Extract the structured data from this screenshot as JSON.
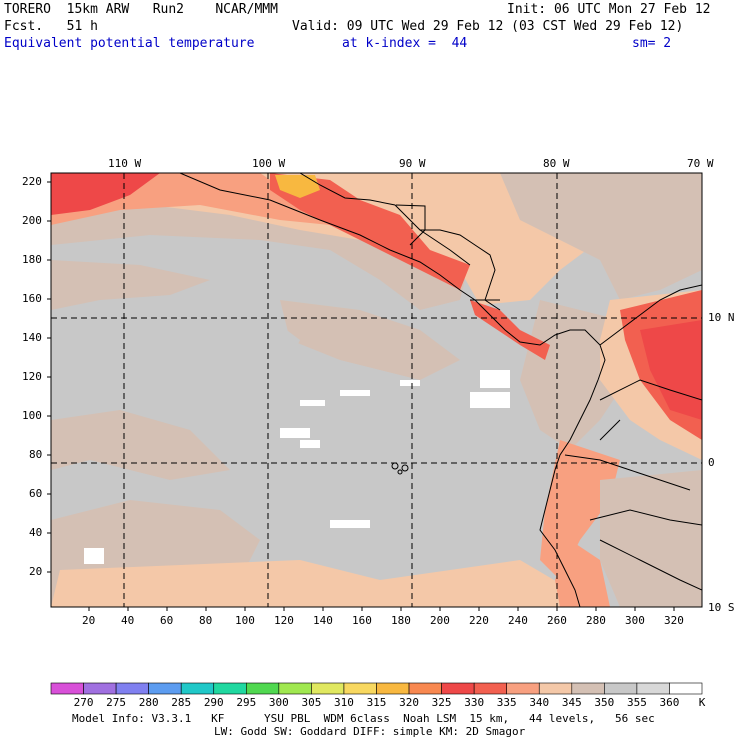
{
  "header": {
    "model": "TORERO  15km ARW   Run2    NCAR/MMM",
    "init": "Init: 06 UTC Mon 27 Feb 12",
    "fcst": "Fcst.   51 h",
    "valid": "Valid: 09 UTC Wed 29 Feb 12 (03 CST Wed 29 Feb 12)",
    "field": "Equivalent potential temperature",
    "level": "at k-index =  44",
    "smooth": "sm= 2"
  },
  "map": {
    "lon_labels": [
      "110 W",
      "100 W",
      "90 W",
      "80 W",
      "70 W"
    ],
    "lat_labels": [
      "10 N",
      "0",
      "10 S"
    ],
    "y_ticks": [
      "220",
      "200",
      "180",
      "160",
      "140",
      "120",
      "100",
      "80",
      "60",
      "40",
      "20"
    ],
    "x_ticks": [
      "20",
      "40",
      "60",
      "80",
      "100",
      "120",
      "140",
      "160",
      "180",
      "200",
      "220",
      "240",
      "260",
      "280",
      "300",
      "320"
    ]
  },
  "colorbar": {
    "colors": [
      "#d850d8",
      "#a070e0",
      "#8080f0",
      "#5c9cf0",
      "#20c8c8",
      "#20d8a0",
      "#50d850",
      "#a0e850",
      "#e0e860",
      "#f8d860",
      "#f8b840",
      "#f88850",
      "#ee4848",
      "#f26050",
      "#f8a080",
      "#f4c8a8",
      "#d4c0b4",
      "#c8c8c8",
      "#d8d8d8",
      "#ffffff"
    ],
    "labels": [
      "270",
      "275",
      "280",
      "285",
      "290",
      "295",
      "300",
      "305",
      "310",
      "315",
      "320",
      "325",
      "330",
      "335",
      "340",
      "345",
      "350",
      "355",
      "360",
      "K"
    ]
  },
  "footer": {
    "line1": "Model Info: V3.3.1   KF      YSU PBL  WDM 6class  Noah LSM  15 km,   44 levels,   56 sec",
    "line2": "LW: Godd SW: Goddard DIFF: simple KM: 2D Smagor"
  }
}
